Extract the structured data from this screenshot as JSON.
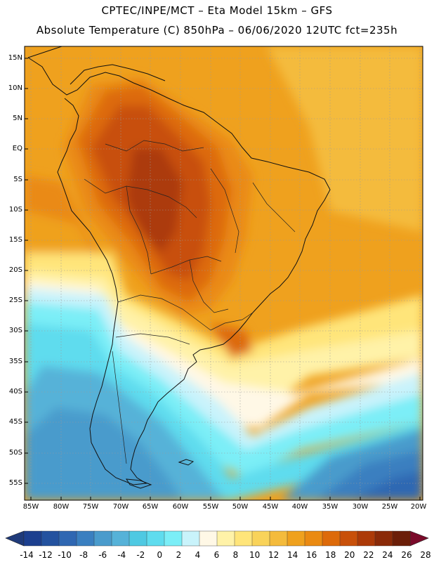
{
  "header": {
    "title_line1": "CPTEC/INPE/MCT –  Eta Model 15km – GFS",
    "title_line2": "Absolute Temperature (C) 850hPa – 06/06/2020 12UTC fct=235h"
  },
  "map": {
    "lat_labels": [
      "15N",
      "10N",
      "5N",
      "EQ",
      "5S",
      "10S",
      "15S",
      "20S",
      "25S",
      "30S",
      "35S",
      "40S",
      "45S",
      "50S",
      "55S"
    ],
    "lon_labels": [
      "85W",
      "80W",
      "75W",
      "70W",
      "65W",
      "60W",
      "55W",
      "50W",
      "45W",
      "40W",
      "35W",
      "30W",
      "25W",
      "20W"
    ]
  },
  "colorbar": {
    "labels": [
      "-14",
      "-12",
      "-10",
      "-8",
      "-6",
      "-4",
      "-2",
      "0",
      "2",
      "4",
      "6",
      "8",
      "10",
      "12",
      "14",
      "16",
      "18",
      "20",
      "22",
      "24",
      "26",
      "28"
    ],
    "colors": [
      "#1c3f8f",
      "#24529f",
      "#2f67b2",
      "#3a7fc0",
      "#4a9bcc",
      "#56b2d8",
      "#4fc9e2",
      "#5fdcee",
      "#7beef7",
      "#c9f3fb",
      "#fff8e6",
      "#fff2a8",
      "#ffe57a",
      "#f9d35a",
      "#f4bb3c",
      "#efa11e",
      "#ea8a12",
      "#dd6a0a",
      "#c8500a",
      "#ac3a08",
      "#8a2a08",
      "#6b1e08"
    ]
  }
}
